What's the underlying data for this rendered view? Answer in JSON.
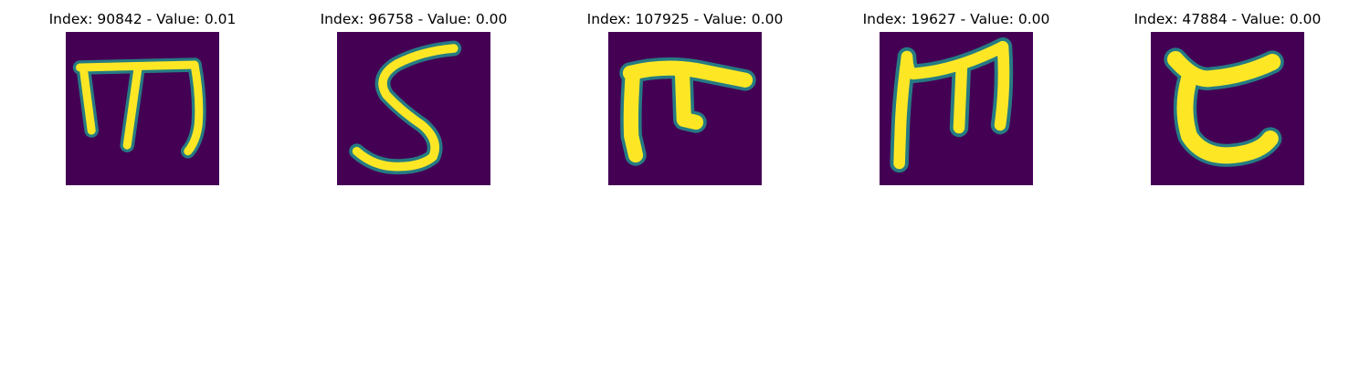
{
  "panels": [
    {
      "title": "Index: 90842 - Value: 0.01",
      "icon": "glyph-image"
    },
    {
      "title": "Index: 96758 - Value: 0.00",
      "icon": "glyph-image"
    },
    {
      "title": "Index: 107925 - Value: 0.00",
      "icon": "glyph-image"
    },
    {
      "title": "Index: 19627 - Value: 0.00",
      "icon": "glyph-image"
    },
    {
      "title": "Index: 47884 - Value: 0.00",
      "icon": "glyph-image"
    }
  ],
  "colors": {
    "background": "#440154",
    "foreground": "#fde725",
    "edge": "#21918c",
    "edge_mid": "#35b779"
  }
}
